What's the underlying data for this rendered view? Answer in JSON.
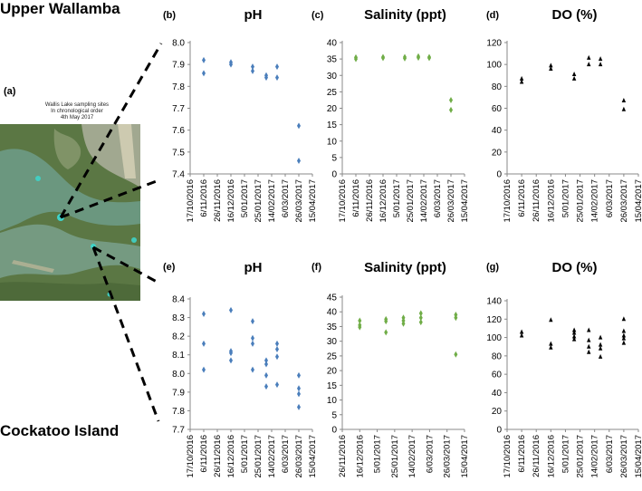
{
  "sites": {
    "upper": "Upper Wallamba",
    "lower": "Cockatoo Island"
  },
  "map": {
    "letter": "(a)",
    "caption": [
      "Wallis Lake sampling sites",
      "In chronological order",
      "4th May 2017"
    ]
  },
  "colors": {
    "ph": "#4a7ebb",
    "salinity": "#70ad47",
    "do": "#000000"
  },
  "chart_data": [
    {
      "id": "b",
      "letter": "(b)",
      "type": "scatter",
      "title": "pH",
      "marker": "diamond",
      "color": "#4a7ebb",
      "ylim": [
        7.4,
        8.0
      ],
      "yticks": [
        "7.4",
        "7.5",
        "7.6",
        "7.7",
        "7.8",
        "7.9",
        "8.0"
      ],
      "xlabels": [
        "17/10/2016",
        "6/11/2016",
        "26/11/2016",
        "16/12/2016",
        "5/01/2017",
        "25/01/2017",
        "14/02/2017",
        "6/03/2017",
        "26/03/2017",
        "15/04/2017"
      ],
      "points": [
        [
          1,
          7.92
        ],
        [
          1,
          7.86
        ],
        [
          3,
          7.91
        ],
        [
          3,
          7.9
        ],
        [
          4.6,
          7.89
        ],
        [
          4.6,
          7.87
        ],
        [
          5.6,
          7.85
        ],
        [
          5.6,
          7.84
        ],
        [
          6.4,
          7.89
        ],
        [
          6.4,
          7.84
        ],
        [
          8,
          7.62
        ],
        [
          8,
          7.46
        ]
      ]
    },
    {
      "id": "c",
      "letter": "(c)",
      "type": "scatter",
      "title": "Salinity (ppt)",
      "marker": "diamond",
      "color": "#70ad47",
      "ylim": [
        0,
        40
      ],
      "yticks": [
        "0",
        "5",
        "10",
        "15",
        "20",
        "25",
        "30",
        "35",
        "40"
      ],
      "xlabels": [
        "17/10/2016",
        "6/11/2016",
        "26/11/2016",
        "16/12/2016",
        "5/01/2017",
        "25/01/2017",
        "14/02/2017",
        "6/03/2017",
        "26/03/2017",
        "15/04/2017"
      ],
      "points": [
        [
          1,
          35.5
        ],
        [
          1,
          35
        ],
        [
          3,
          35.6
        ],
        [
          3,
          35.3
        ],
        [
          4.6,
          35.6
        ],
        [
          4.6,
          35.2
        ],
        [
          5.6,
          35.8
        ],
        [
          5.6,
          35.4
        ],
        [
          6.4,
          35.6
        ],
        [
          6.4,
          35.3
        ],
        [
          8,
          22.5
        ],
        [
          8,
          19.5
        ]
      ]
    },
    {
      "id": "d",
      "letter": "(d)",
      "type": "scatter",
      "title": "DO (%)",
      "marker": "triangle",
      "color": "#000000",
      "ylim": [
        0,
        120
      ],
      "yticks": [
        "0",
        "20",
        "40",
        "60",
        "80",
        "100",
        "120"
      ],
      "xlabels": [
        "17/10/2016",
        "6/11/2016",
        "26/11/2016",
        "16/12/2016",
        "5/01/2017",
        "25/01/2017",
        "14/02/2017",
        "6/03/2017",
        "26/03/2017",
        "15/04/2017"
      ],
      "points": [
        [
          1,
          87
        ],
        [
          1,
          84
        ],
        [
          3,
          99
        ],
        [
          3,
          96
        ],
        [
          4.6,
          91
        ],
        [
          4.6,
          87
        ],
        [
          5.6,
          106
        ],
        [
          5.6,
          100
        ],
        [
          6.4,
          105
        ],
        [
          6.4,
          100
        ],
        [
          8,
          67
        ],
        [
          8,
          59
        ]
      ]
    },
    {
      "id": "e",
      "letter": "(e)",
      "type": "scatter",
      "title": "pH",
      "marker": "diamond",
      "color": "#4a7ebb",
      "ylim": [
        7.7,
        8.4
      ],
      "yticks": [
        "7.7",
        "7.8",
        "7.9",
        "8.0",
        "8.1",
        "8.2",
        "8.3",
        "8.4"
      ],
      "xlabels": [
        "17/10/2016",
        "6/11/2016",
        "26/11/2016",
        "16/12/2016",
        "5/01/2017",
        "25/01/2017",
        "14/02/2017",
        "6/03/2017",
        "26/03/2017",
        "15/04/2017"
      ],
      "points": [
        [
          1,
          8.32
        ],
        [
          1,
          8.16
        ],
        [
          1,
          8.02
        ],
        [
          3,
          8.34
        ],
        [
          3,
          8.12
        ],
        [
          3,
          8.11
        ],
        [
          3,
          8.07
        ],
        [
          4.6,
          8.28
        ],
        [
          4.6,
          8.19
        ],
        [
          4.6,
          8.16
        ],
        [
          4.6,
          8.02
        ],
        [
          5.6,
          8.07
        ],
        [
          5.6,
          8.05
        ],
        [
          5.6,
          7.99
        ],
        [
          5.6,
          7.93
        ],
        [
          6.4,
          8.16
        ],
        [
          6.4,
          8.13
        ],
        [
          6.4,
          8.09
        ],
        [
          6.4,
          7.94
        ],
        [
          8,
          7.99
        ],
        [
          8,
          7.92
        ],
        [
          8,
          7.89
        ],
        [
          8,
          7.82
        ]
      ]
    },
    {
      "id": "f",
      "letter": "(f)",
      "type": "scatter",
      "title": "Salinity (ppt)",
      "marker": "diamond",
      "color": "#70ad47",
      "ylim": [
        0,
        45
      ],
      "yticks": [
        "0",
        "5",
        "10",
        "15",
        "20",
        "25",
        "30",
        "35",
        "40",
        "45"
      ],
      "xlabels": [
        "26/11/2016",
        "16/12/2016",
        "5/01/2017",
        "25/01/2017",
        "14/02/2017",
        "6/03/2017",
        "26/03/2017",
        "15/04/2017"
      ],
      "points": [
        [
          1,
          37
        ],
        [
          1,
          35.5
        ],
        [
          1,
          34.8
        ],
        [
          2.5,
          37.5
        ],
        [
          2.5,
          36.8
        ],
        [
          2.5,
          33
        ],
        [
          3.5,
          38
        ],
        [
          3.5,
          37
        ],
        [
          3.5,
          36
        ],
        [
          4.5,
          39.5
        ],
        [
          4.5,
          38
        ],
        [
          4.5,
          36.5
        ],
        [
          6.5,
          39
        ],
        [
          6.5,
          38
        ],
        [
          6.5,
          25.5
        ]
      ]
    },
    {
      "id": "g",
      "letter": "(g)",
      "type": "scatter",
      "title": "DO (%)",
      "marker": "triangle",
      "color": "#000000",
      "ylim": [
        0,
        140
      ],
      "yticks": [
        "0",
        "20",
        "40",
        "60",
        "80",
        "100",
        "120",
        "140"
      ],
      "xlabels": [
        "17/10/2016",
        "6/11/2016",
        "26/11/2016",
        "16/12/2016",
        "5/01/2017",
        "25/01/2017",
        "14/02/2017",
        "6/03/2017",
        "26/03/2017",
        "15/04/2017"
      ],
      "points": [
        [
          1,
          106
        ],
        [
          1,
          102
        ],
        [
          3,
          119
        ],
        [
          3,
          93
        ],
        [
          3,
          89
        ],
        [
          4.6,
          108
        ],
        [
          4.6,
          105
        ],
        [
          4.6,
          101
        ],
        [
          4.6,
          98
        ],
        [
          5.6,
          108
        ],
        [
          5.6,
          97
        ],
        [
          5.6,
          90
        ],
        [
          5.6,
          84
        ],
        [
          6.4,
          100
        ],
        [
          6.4,
          92
        ],
        [
          6.4,
          88
        ],
        [
          6.4,
          79
        ],
        [
          8,
          120
        ],
        [
          8,
          107
        ],
        [
          8,
          102
        ],
        [
          8,
          99
        ],
        [
          8,
          94
        ]
      ]
    }
  ]
}
